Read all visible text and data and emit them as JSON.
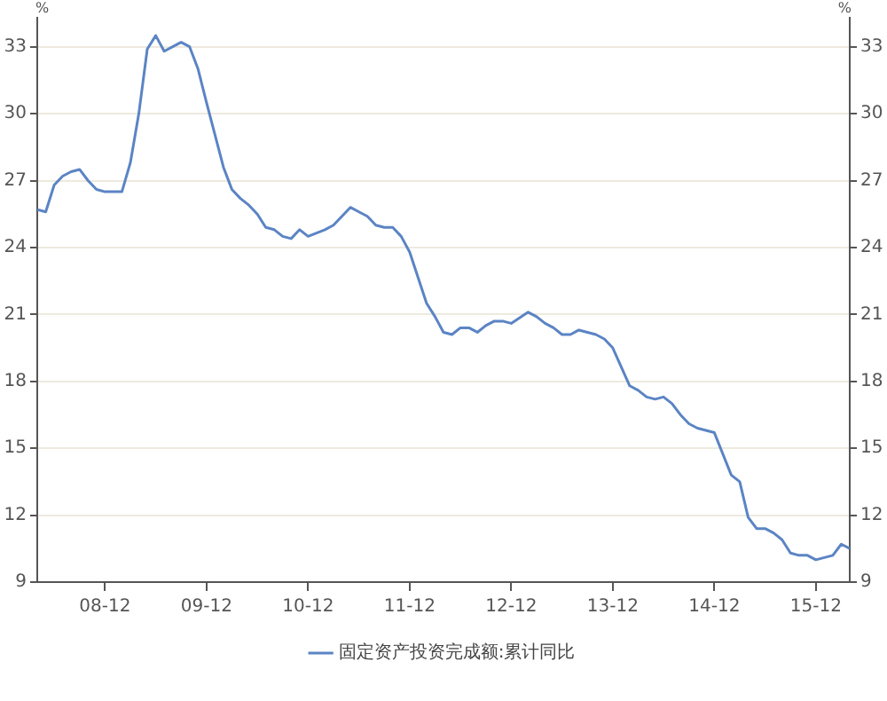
{
  "chart_data": {
    "type": "line",
    "ylabel": "%",
    "y2label": "%",
    "x": [
      "2008-04",
      "2008-05",
      "2008-06",
      "2008-07",
      "2008-08",
      "2008-09",
      "2008-10",
      "2008-11",
      "2008-12",
      "2009-02",
      "2009-03",
      "2009-04",
      "2009-05",
      "2009-06",
      "2009-07",
      "2009-08",
      "2009-09",
      "2009-10",
      "2009-11",
      "2009-12",
      "2010-02",
      "2010-03",
      "2010-04",
      "2010-05",
      "2010-06",
      "2010-07",
      "2010-08",
      "2010-09",
      "2010-10",
      "2010-11",
      "2010-12",
      "2011-02",
      "2011-03",
      "2011-04",
      "2011-05",
      "2011-06",
      "2011-07",
      "2011-08",
      "2011-09",
      "2011-10",
      "2011-11",
      "2011-12",
      "2012-02",
      "2012-03",
      "2012-04",
      "2012-05",
      "2012-06",
      "2012-07",
      "2012-08",
      "2012-09",
      "2012-10",
      "2012-11",
      "2012-12",
      "2013-02",
      "2013-03",
      "2013-04",
      "2013-05",
      "2013-06",
      "2013-07",
      "2013-08",
      "2013-09",
      "2013-10",
      "2013-11",
      "2013-12",
      "2014-02",
      "2014-03",
      "2014-04",
      "2014-05",
      "2014-06",
      "2014-07",
      "2014-08",
      "2014-09",
      "2014-10",
      "2014-11",
      "2014-12",
      "2015-02",
      "2015-03",
      "2015-04",
      "2015-05",
      "2015-06",
      "2015-07",
      "2015-08",
      "2015-09",
      "2015-10",
      "2015-11",
      "2015-12",
      "2016-02",
      "2016-03",
      "2016-04"
    ],
    "series": [
      {
        "name": "固定资产投资完成额:累计同比",
        "color": "#5b84c4",
        "values": [
          25.7,
          25.6,
          26.8,
          27.2,
          27.4,
          27.5,
          27.0,
          26.6,
          26.5,
          26.5,
          27.8,
          30.0,
          32.9,
          33.5,
          32.8,
          33.0,
          33.2,
          33.0,
          32.0,
          30.5,
          27.6,
          26.6,
          26.2,
          25.9,
          25.5,
          24.9,
          24.8,
          24.5,
          24.4,
          24.8,
          24.5,
          24.8,
          25.0,
          25.4,
          25.8,
          25.6,
          25.4,
          25.0,
          24.9,
          24.9,
          24.5,
          23.8,
          21.5,
          20.9,
          20.2,
          20.1,
          20.4,
          20.4,
          20.2,
          20.5,
          20.7,
          20.7,
          20.6,
          21.1,
          20.9,
          20.6,
          20.4,
          20.1,
          20.1,
          20.3,
          20.2,
          20.1,
          19.9,
          19.5,
          17.8,
          17.6,
          17.3,
          17.2,
          17.3,
          17.0,
          16.5,
          16.1,
          15.9,
          15.8,
          15.7,
          13.8,
          13.5,
          11.9,
          11.4,
          11.4,
          11.2,
          10.9,
          10.3,
          10.2,
          10.2,
          10.0,
          10.2,
          10.7,
          10.5
        ]
      }
    ],
    "xlim": [
      "2008-04",
      "2016-04"
    ],
    "xticks": [
      {
        "value": "2008-12",
        "label": "08-12"
      },
      {
        "value": "2009-12",
        "label": "09-12"
      },
      {
        "value": "2010-12",
        "label": "10-12"
      },
      {
        "value": "2011-12",
        "label": "11-12"
      },
      {
        "value": "2012-12",
        "label": "12-12"
      },
      {
        "value": "2013-12",
        "label": "13-12"
      },
      {
        "value": "2014-12",
        "label": "14-12"
      },
      {
        "value": "2015-12",
        "label": "15-12"
      }
    ],
    "ylim": [
      9,
      34.3
    ],
    "yticks": [
      9,
      12,
      15,
      18,
      21,
      24,
      27,
      30,
      33
    ],
    "y2lim": [
      9,
      34.3
    ],
    "y2ticks": [
      9,
      12,
      15,
      18,
      21,
      24,
      27,
      30,
      33
    ],
    "grid": "y",
    "legend": "bottom",
    "marker": "none"
  }
}
